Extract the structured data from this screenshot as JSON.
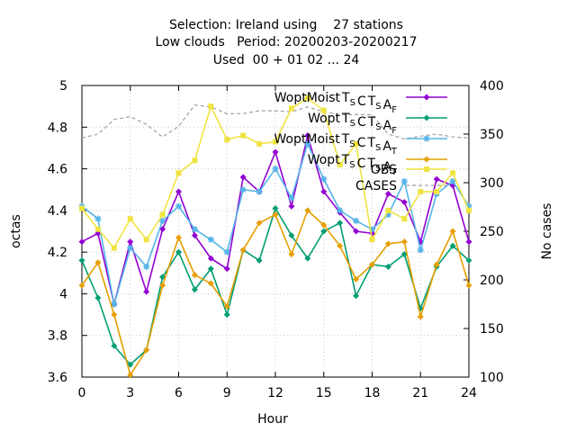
{
  "chart_data": {
    "type": "line",
    "title_lines": [
      "Selection: Ireland using    27 stations",
      "Low clouds   Period: 20200203-20200217",
      "Used  00 + 01 02 ... 24"
    ],
    "xlabel": "Hour",
    "ylabel": "octas",
    "y2label": "No cases",
    "xlim": [
      0,
      24
    ],
    "ylim": [
      3.6,
      5.0
    ],
    "y2lim": [
      100,
      400
    ],
    "xticks": [
      "0",
      "3",
      "6",
      "9",
      "12",
      "15",
      "18",
      "21",
      "24"
    ],
    "yticks": [
      "3.6",
      "3.8",
      "4",
      "4.2",
      "4.4",
      "4.6",
      "4.8",
      "5"
    ],
    "y2ticks": [
      "100",
      "150",
      "200",
      "250",
      "300",
      "350",
      "400"
    ],
    "legend_position": "top-right",
    "x": [
      0,
      1,
      2,
      3,
      4,
      5,
      6,
      7,
      8,
      9,
      10,
      11,
      12,
      13,
      14,
      15,
      16,
      17,
      18,
      19,
      20,
      21,
      22,
      23,
      24
    ],
    "series": [
      {
        "label_main": "WoptMoist",
        "label_parts": [
          [
            "T",
            "S"
          ],
          [
            "C",
            ""
          ],
          [
            "T",
            "S"
          ],
          [
            "A",
            "F"
          ]
        ],
        "color": "#9400d3",
        "marker": "diamond",
        "axis": "y",
        "values": [
          4.25,
          4.29,
          3.95,
          4.25,
          4.01,
          4.31,
          4.49,
          4.28,
          4.17,
          4.12,
          4.56,
          4.49,
          4.68,
          4.42,
          4.76,
          4.49,
          4.39,
          4.3,
          4.29,
          4.48,
          4.44,
          4.25,
          4.55,
          4.52,
          4.25
        ]
      },
      {
        "label_main": "Wopt",
        "label_parts": [
          [
            "T",
            "S"
          ],
          [
            "C",
            ""
          ],
          [
            "T",
            "S"
          ],
          [
            "A",
            "F"
          ]
        ],
        "color": "#009e73",
        "marker": "diamond",
        "axis": "y",
        "values": [
          4.16,
          3.98,
          3.75,
          3.66,
          3.73,
          4.08,
          4.2,
          4.02,
          4.12,
          3.9,
          4.21,
          4.16,
          4.41,
          4.28,
          4.17,
          4.3,
          4.34,
          3.99,
          4.14,
          4.13,
          4.19,
          3.93,
          4.13,
          4.23,
          4.16
        ]
      },
      {
        "label_main": "WoptMoist",
        "label_parts": [
          [
            "T",
            "S"
          ],
          [
            "C",
            ""
          ],
          [
            "T",
            "S"
          ],
          [
            "A",
            "T"
          ]
        ],
        "color": "#56b4e9",
        "marker": "star",
        "axis": "y",
        "values": [
          4.42,
          4.36,
          3.95,
          4.22,
          4.13,
          4.35,
          4.42,
          4.31,
          4.26,
          4.2,
          4.5,
          4.49,
          4.6,
          4.46,
          4.72,
          4.55,
          4.4,
          4.35,
          4.31,
          4.38,
          4.54,
          4.21,
          4.48,
          4.54,
          4.42
        ]
      },
      {
        "label_main": "Wopt",
        "label_parts": [
          [
            "T",
            "S"
          ],
          [
            "C",
            ""
          ],
          [
            "T",
            "S"
          ],
          [
            "A",
            "T"
          ]
        ],
        "color": "#e69f00",
        "marker": "diamond",
        "axis": "y",
        "values": [
          4.04,
          4.15,
          3.9,
          3.61,
          3.73,
          4.04,
          4.27,
          4.09,
          4.05,
          3.94,
          4.21,
          4.34,
          4.38,
          4.19,
          4.4,
          4.33,
          4.23,
          4.07,
          4.14,
          4.24,
          4.25,
          3.89,
          4.14,
          4.3,
          4.04
        ]
      },
      {
        "label_main": "OBS",
        "label_parts": [],
        "color": "#f0e442",
        "marker": "square",
        "axis": "y",
        "values": [
          4.41,
          4.31,
          4.22,
          4.36,
          4.26,
          4.38,
          4.58,
          4.64,
          4.9,
          4.74,
          4.76,
          4.72,
          4.73,
          4.89,
          4.94,
          4.88,
          4.62,
          4.72,
          4.26,
          4.4,
          4.36,
          4.49,
          4.49,
          4.58,
          4.4
        ]
      },
      {
        "label_main": "CASES",
        "label_parts": [],
        "color": "#a0a0a0",
        "marker": "none",
        "dashed": true,
        "axis": "y2",
        "values": [
          346,
          350,
          365,
          368,
          360,
          347,
          358,
          380,
          378,
          371,
          371,
          374,
          374,
          373,
          378,
          373,
          370,
          370,
          370,
          350,
          345,
          348,
          350,
          347,
          346
        ]
      }
    ]
  }
}
